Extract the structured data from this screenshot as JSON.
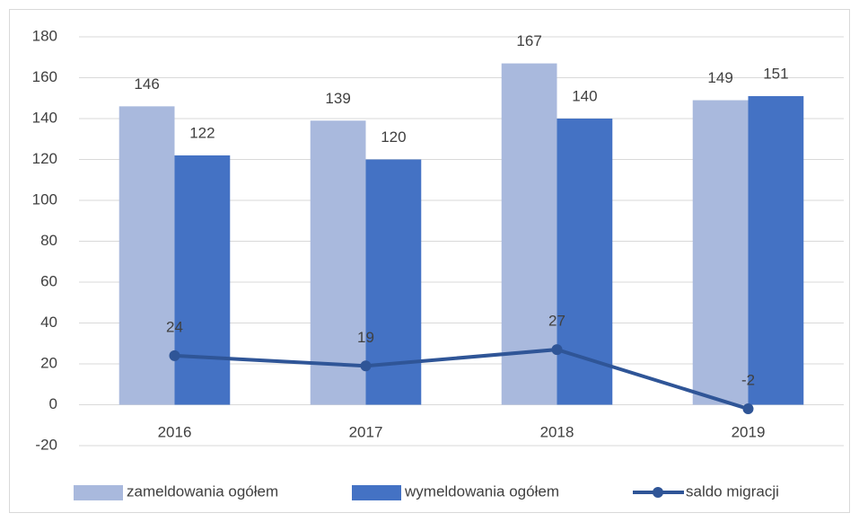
{
  "chart_data": {
    "type": "bar",
    "categories": [
      "2016",
      "2017",
      "2018",
      "2019"
    ],
    "series": [
      {
        "name": "zameldowania ogółem",
        "type": "bar",
        "color": "#a9b9dd",
        "values": [
          146,
          139,
          167,
          149
        ]
      },
      {
        "name": "wymeldowania ogółem",
        "type": "bar",
        "color": "#4472c4",
        "values": [
          122,
          120,
          140,
          151
        ]
      },
      {
        "name": "saldo migracji",
        "type": "line",
        "color": "#2f5597",
        "values": [
          24,
          19,
          27,
          -2
        ]
      }
    ],
    "ylim": [
      -20,
      180
    ],
    "yticks": [
      -20,
      0,
      20,
      40,
      60,
      80,
      100,
      120,
      140,
      160,
      180
    ],
    "grid": true,
    "legend": "bottom"
  }
}
